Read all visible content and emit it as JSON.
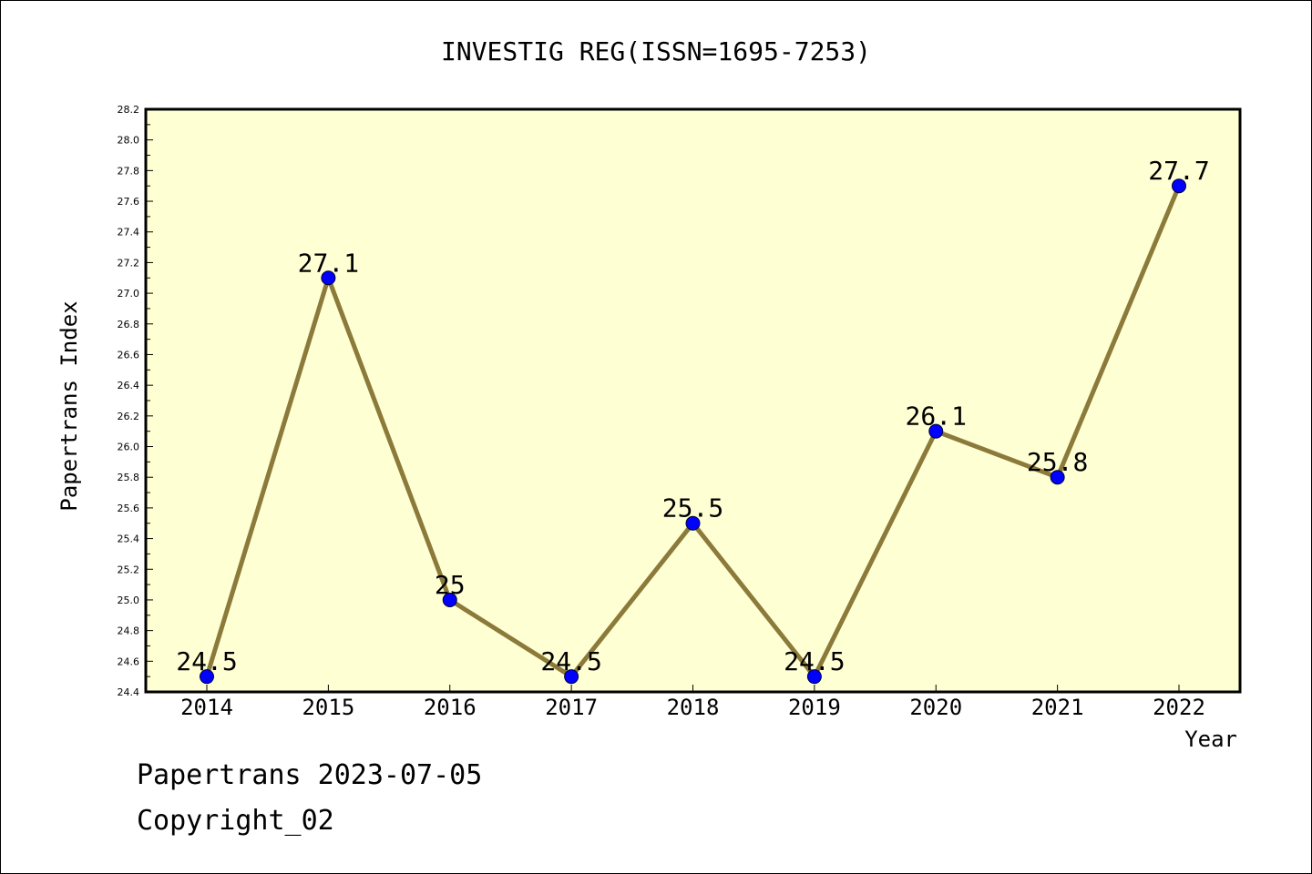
{
  "chart_data": {
    "type": "line",
    "title": "INVESTIG REG(ISSN=1695-7253)",
    "xlabel": "Year",
    "ylabel": "Papertrans Index",
    "categories": [
      "2014",
      "2015",
      "2016",
      "2017",
      "2018",
      "2019",
      "2020",
      "2021",
      "2022"
    ],
    "series": [
      {
        "values": [
          24.5,
          27.1,
          25.0,
          24.5,
          25.5,
          24.5,
          26.1,
          25.8,
          27.7
        ],
        "data_labels": [
          "24.5",
          "27.1",
          "25",
          "24.5",
          "25.5",
          "24.5",
          "26.1",
          "25.8",
          "27.7"
        ]
      }
    ],
    "ylim": [
      24.4,
      28.2
    ],
    "yticks": [
      "24.4",
      "24.6",
      "24.8",
      "25.0",
      "25.2",
      "25.4",
      "25.6",
      "25.8",
      "26.0",
      "26.2",
      "26.4",
      "26.6",
      "26.8",
      "27.0",
      "27.2",
      "27.4",
      "27.6",
      "27.8",
      "28.0",
      "28.2"
    ],
    "grid": false,
    "colors": {
      "plot_background": "#ffffd4",
      "line": "#8b7a3a",
      "marker": "#0000ff"
    }
  },
  "footer": {
    "line1": "Papertrans 2023-07-05",
    "line2": "Copyright_02"
  }
}
